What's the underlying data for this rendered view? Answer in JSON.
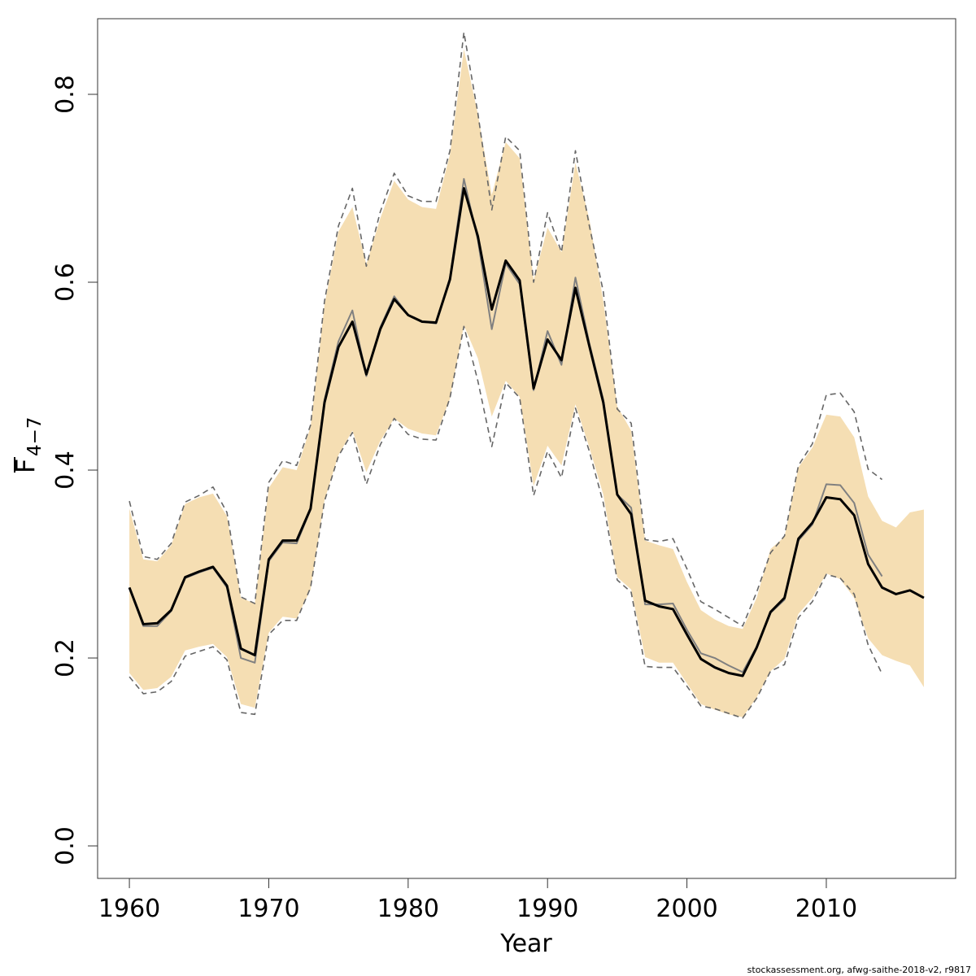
{
  "chart_data": {
    "type": "line",
    "xlabel": "Year",
    "ylabel": "F",
    "ylabel_sub": "4−7",
    "caption": "stockassessment.org, afwg-saithe-2018-v2, r9817",
    "xlim": [
      1957.72,
      2019.28
    ],
    "ylim": [
      -0.0346,
      0.8805
    ],
    "xticks": [
      1960,
      1970,
      1980,
      1990,
      2000,
      2010
    ],
    "yticks": [
      {
        "value": 0,
        "label": "0.0"
      },
      0.2,
      0.4,
      0.6,
      0.8
    ],
    "x": [
      1960,
      1961,
      1962,
      1963,
      1964,
      1965,
      1966,
      1967,
      1968,
      1969,
      1970,
      1971,
      1972,
      1973,
      1974,
      1975,
      1976,
      1977,
      1978,
      1979,
      1980,
      1981,
      1982,
      1983,
      1984,
      1985,
      1986,
      1987,
      1988,
      1989,
      1990,
      1991,
      1992,
      1993,
      1994,
      1995,
      1996,
      1997,
      1998,
      1999,
      2000,
      2001,
      2002,
      2003,
      2004,
      2005,
      2006,
      2007,
      2008,
      2009,
      2010,
      2011,
      2012,
      2013,
      2014,
      2015,
      2016,
      2017
    ],
    "band": {
      "color": "#f5deb3",
      "upper": [
        0.359,
        0.305,
        0.303,
        0.32,
        0.364,
        0.371,
        0.375,
        0.351,
        0.264,
        0.258,
        0.381,
        0.403,
        0.4,
        0.446,
        0.576,
        0.654,
        0.68,
        0.619,
        0.668,
        0.708,
        0.688,
        0.68,
        0.678,
        0.736,
        0.848,
        0.779,
        0.693,
        0.749,
        0.732,
        0.602,
        0.658,
        0.632,
        0.727,
        0.667,
        0.58,
        0.468,
        0.442,
        0.325,
        0.32,
        0.316,
        0.281,
        0.251,
        0.241,
        0.234,
        0.231,
        0.264,
        0.316,
        0.329,
        0.403,
        0.424,
        0.459,
        0.457,
        0.435,
        0.372,
        0.346,
        0.339,
        0.355,
        0.358
      ],
      "lower": [
        0.184,
        0.166,
        0.168,
        0.18,
        0.208,
        0.212,
        0.215,
        0.201,
        0.151,
        0.147,
        0.227,
        0.244,
        0.242,
        0.273,
        0.368,
        0.416,
        0.442,
        0.398,
        0.431,
        0.455,
        0.444,
        0.439,
        0.437,
        0.476,
        0.554,
        0.519,
        0.457,
        0.495,
        0.478,
        0.383,
        0.426,
        0.405,
        0.47,
        0.424,
        0.374,
        0.286,
        0.273,
        0.201,
        0.195,
        0.195,
        0.173,
        0.151,
        0.145,
        0.14,
        0.137,
        0.158,
        0.186,
        0.199,
        0.247,
        0.264,
        0.29,
        0.284,
        0.264,
        0.221,
        0.203,
        0.197,
        0.192,
        0.169
      ]
    },
    "series": [
      {
        "color": "#808080",
        "width": 2,
        "x": [
          1960,
          1961,
          1962,
          1963,
          1964,
          1965,
          1966,
          1967,
          1968,
          1969,
          1970,
          1971,
          1972,
          1973,
          1974,
          1975,
          1976,
          1977,
          1978,
          1979,
          1980,
          1981,
          1982,
          1983,
          1984,
          1985,
          1986,
          1987,
          1988,
          1989,
          1990,
          1991,
          1992,
          1993,
          1994,
          1995,
          1996,
          1997,
          1998,
          1999,
          2000,
          2001,
          2002,
          2003,
          2004,
          2005,
          2006,
          2007,
          2008,
          2009,
          2010,
          2011,
          2012,
          2013,
          2014
        ],
        "values": [
          0.275,
          0.234,
          0.234,
          0.25,
          0.285,
          0.291,
          0.296,
          0.275,
          0.2,
          0.195,
          0.303,
          0.323,
          0.322,
          0.358,
          0.475,
          0.537,
          0.57,
          0.5,
          0.552,
          0.585,
          0.565,
          0.558,
          0.556,
          0.605,
          0.71,
          0.645,
          0.55,
          0.62,
          0.598,
          0.485,
          0.548,
          0.512,
          0.605,
          0.535,
          0.475,
          0.374,
          0.36,
          0.257,
          0.257,
          0.258,
          0.23,
          0.205,
          0.2,
          0.192,
          0.185,
          0.212,
          0.248,
          0.262,
          0.325,
          0.342,
          0.385,
          0.384,
          0.365,
          0.31,
          0.287
        ]
      },
      {
        "color": "#666666",
        "width": 1.6,
        "dashed": true,
        "x": [
          1960,
          1961,
          1962,
          1963,
          1964,
          1965,
          1966,
          1967,
          1968,
          1969,
          1970,
          1971,
          1972,
          1973,
          1974,
          1975,
          1976,
          1977,
          1978,
          1979,
          1980,
          1981,
          1982,
          1983,
          1984,
          1985,
          1986,
          1987,
          1988,
          1989,
          1990,
          1991,
          1992,
          1993,
          1994,
          1995,
          1996,
          1997,
          1998,
          1999,
          2000,
          2001,
          2002,
          2003,
          2004,
          2005,
          2006,
          2007,
          2008,
          2009,
          2010,
          2011,
          2012,
          2013,
          2014
        ],
        "values": [
          0.367,
          0.308,
          0.305,
          0.322,
          0.366,
          0.373,
          0.382,
          0.355,
          0.265,
          0.258,
          0.387,
          0.41,
          0.405,
          0.448,
          0.58,
          0.66,
          0.7,
          0.617,
          0.675,
          0.716,
          0.692,
          0.686,
          0.686,
          0.74,
          0.866,
          0.78,
          0.677,
          0.755,
          0.74,
          0.6,
          0.674,
          0.632,
          0.74,
          0.66,
          0.59,
          0.465,
          0.45,
          0.326,
          0.324,
          0.327,
          0.295,
          0.26,
          0.252,
          0.243,
          0.234,
          0.27,
          0.312,
          0.33,
          0.405,
          0.428,
          0.48,
          0.482,
          0.462,
          0.401,
          0.39
        ]
      },
      {
        "color": "#666666",
        "width": 1.6,
        "dashed": true,
        "x": [
          1960,
          1961,
          1962,
          1963,
          1964,
          1965,
          1966,
          1967,
          1968,
          1969,
          1970,
          1971,
          1972,
          1973,
          1974,
          1975,
          1976,
          1977,
          1978,
          1979,
          1980,
          1981,
          1982,
          1983,
          1984,
          1985,
          1986,
          1987,
          1988,
          1989,
          1990,
          1991,
          1992,
          1993,
          1994,
          1995,
          1996,
          1997,
          1998,
          1999,
          2000,
          2001,
          2002,
          2003,
          2004,
          2005,
          2006,
          2007,
          2008,
          2009,
          2010,
          2011,
          2012,
          2013,
          2014
        ],
        "values": [
          0.18,
          0.162,
          0.164,
          0.175,
          0.202,
          0.207,
          0.212,
          0.198,
          0.142,
          0.14,
          0.225,
          0.24,
          0.24,
          0.275,
          0.367,
          0.415,
          0.44,
          0.385,
          0.427,
          0.455,
          0.438,
          0.433,
          0.432,
          0.477,
          0.553,
          0.495,
          0.425,
          0.493,
          0.477,
          0.373,
          0.42,
          0.392,
          0.466,
          0.42,
          0.365,
          0.283,
          0.27,
          0.191,
          0.19,
          0.19,
          0.17,
          0.149,
          0.146,
          0.141,
          0.136,
          0.157,
          0.186,
          0.193,
          0.243,
          0.26,
          0.289,
          0.285,
          0.268,
          0.214,
          0.183
        ]
      },
      {
        "color": "#000000",
        "width": 3,
        "values": [
          0.275,
          0.236,
          0.237,
          0.251,
          0.286,
          0.292,
          0.297,
          0.277,
          0.21,
          0.203,
          0.305,
          0.325,
          0.325,
          0.359,
          0.472,
          0.531,
          0.558,
          0.502,
          0.55,
          0.582,
          0.565,
          0.558,
          0.557,
          0.603,
          0.7,
          0.649,
          0.571,
          0.623,
          0.602,
          0.487,
          0.539,
          0.517,
          0.594,
          0.532,
          0.472,
          0.374,
          0.353,
          0.261,
          0.255,
          0.252,
          0.225,
          0.199,
          0.19,
          0.184,
          0.181,
          0.211,
          0.249,
          0.264,
          0.327,
          0.344,
          0.371,
          0.369,
          0.352,
          0.3,
          0.275,
          0.268,
          0.272,
          0.264
        ]
      }
    ]
  }
}
